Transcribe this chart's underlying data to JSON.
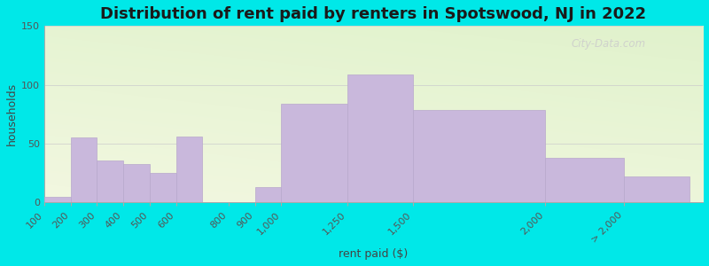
{
  "title": "Distribution of rent paid by renters in Spotswood, NJ in 2022",
  "xlabel": "rent paid ($)",
  "ylabel": "households",
  "bar_color": "#c9b8dc",
  "bar_edgecolor": "#b8a8cc",
  "categories": [
    "100",
    "200",
    "300",
    "400",
    "500",
    "600",
    "800",
    "900",
    "1,000",
    "1,250",
    "1,500",
    "2,000",
    "> 2,000"
  ],
  "values": [
    5,
    55,
    36,
    33,
    25,
    56,
    0,
    13,
    84,
    109,
    79,
    38,
    22
  ],
  "bar_positions": [
    100,
    200,
    300,
    400,
    500,
    600,
    800,
    900,
    1000,
    1250,
    1500,
    2000,
    2300
  ],
  "bar_widths": [
    100,
    100,
    100,
    100,
    100,
    100,
    100,
    100,
    250,
    250,
    500,
    300,
    250
  ],
  "ylim": [
    0,
    150
  ],
  "yticks": [
    0,
    50,
    100,
    150
  ],
  "xlim_left": 100,
  "xlim_right": 2600,
  "bg_outer": "#00e8e8",
  "title_fontsize": 13,
  "axis_label_fontsize": 9,
  "tick_fontsize": 8,
  "watermark_text": "City-Data.com"
}
